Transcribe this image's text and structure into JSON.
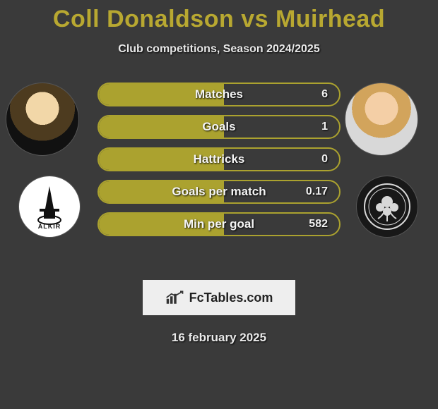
{
  "title_color": "#b8a831",
  "header": {
    "player1": "Coll Donaldson",
    "vs": "vs",
    "player2": "Muirhead"
  },
  "subtitle": "Club competitions, Season 2024/2025",
  "left_club_label": "ALKIR",
  "bars": {
    "border_color": "#aba22f",
    "fill_color": "#aba22f",
    "items": [
      {
        "label": "Matches",
        "value": "6",
        "fill_pct": 52
      },
      {
        "label": "Goals",
        "value": "1",
        "fill_pct": 52
      },
      {
        "label": "Hattricks",
        "value": "0",
        "fill_pct": 52
      },
      {
        "label": "Goals per match",
        "value": "0.17",
        "fill_pct": 52
      },
      {
        "label": "Min per goal",
        "value": "582",
        "fill_pct": 52
      }
    ]
  },
  "logo_text": "FcTables.com",
  "date": "16 february 2025"
}
